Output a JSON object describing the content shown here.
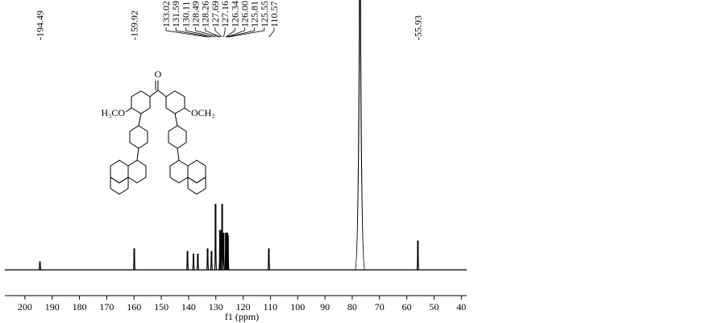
{
  "chart_data": {
    "type": "spectrum",
    "x_label": "f1 (ppm)",
    "xlim": [
      205,
      38
    ],
    "xticks": [
      200,
      190,
      180,
      170,
      160,
      150,
      140,
      130,
      120,
      110,
      100,
      90,
      80,
      70,
      60,
      50,
      40
    ],
    "ylim": [
      0,
      100
    ],
    "color": "#000000",
    "peaks": {
      "x": [
        194.49,
        159.92,
        140.4,
        138.2,
        136.6,
        133.02,
        131.59,
        130.11,
        128.49,
        128.26,
        127.69,
        127.16,
        126.34,
        126.0,
        125.81,
        125.55,
        110.57,
        77.16,
        55.93
      ],
      "values": [
        3,
        8,
        7,
        6,
        6,
        8,
        7,
        25,
        15,
        15,
        25,
        14,
        14,
        14,
        14,
        13,
        8,
        123,
        11
      ]
    },
    "peak_labels": [
      {
        "value": 194.49,
        "label": "-194.49"
      },
      {
        "value": 159.92,
        "label": "-159.92"
      },
      {
        "value": 133.02,
        "label": "133.02"
      },
      {
        "value": 131.59,
        "label": "131.59"
      },
      {
        "value": 130.11,
        "label": "130.11"
      },
      {
        "value": 128.49,
        "label": "128.49"
      },
      {
        "value": 128.26,
        "label": "128.26"
      },
      {
        "value": 127.69,
        "label": "127.69"
      },
      {
        "value": 127.16,
        "label": "127.16"
      },
      {
        "value": 126.34,
        "label": "126.34"
      },
      {
        "value": 126.0,
        "label": "126.00"
      },
      {
        "value": 125.81,
        "label": "125.81"
      },
      {
        "value": 125.55,
        "label": "125.55"
      },
      {
        "value": 110.57,
        "label": "110.57"
      },
      {
        "value": 55.93,
        "label": "-55.93"
      }
    ],
    "structure": {
      "labels": [
        "O",
        "H₃CO",
        "OCH₃"
      ]
    }
  }
}
